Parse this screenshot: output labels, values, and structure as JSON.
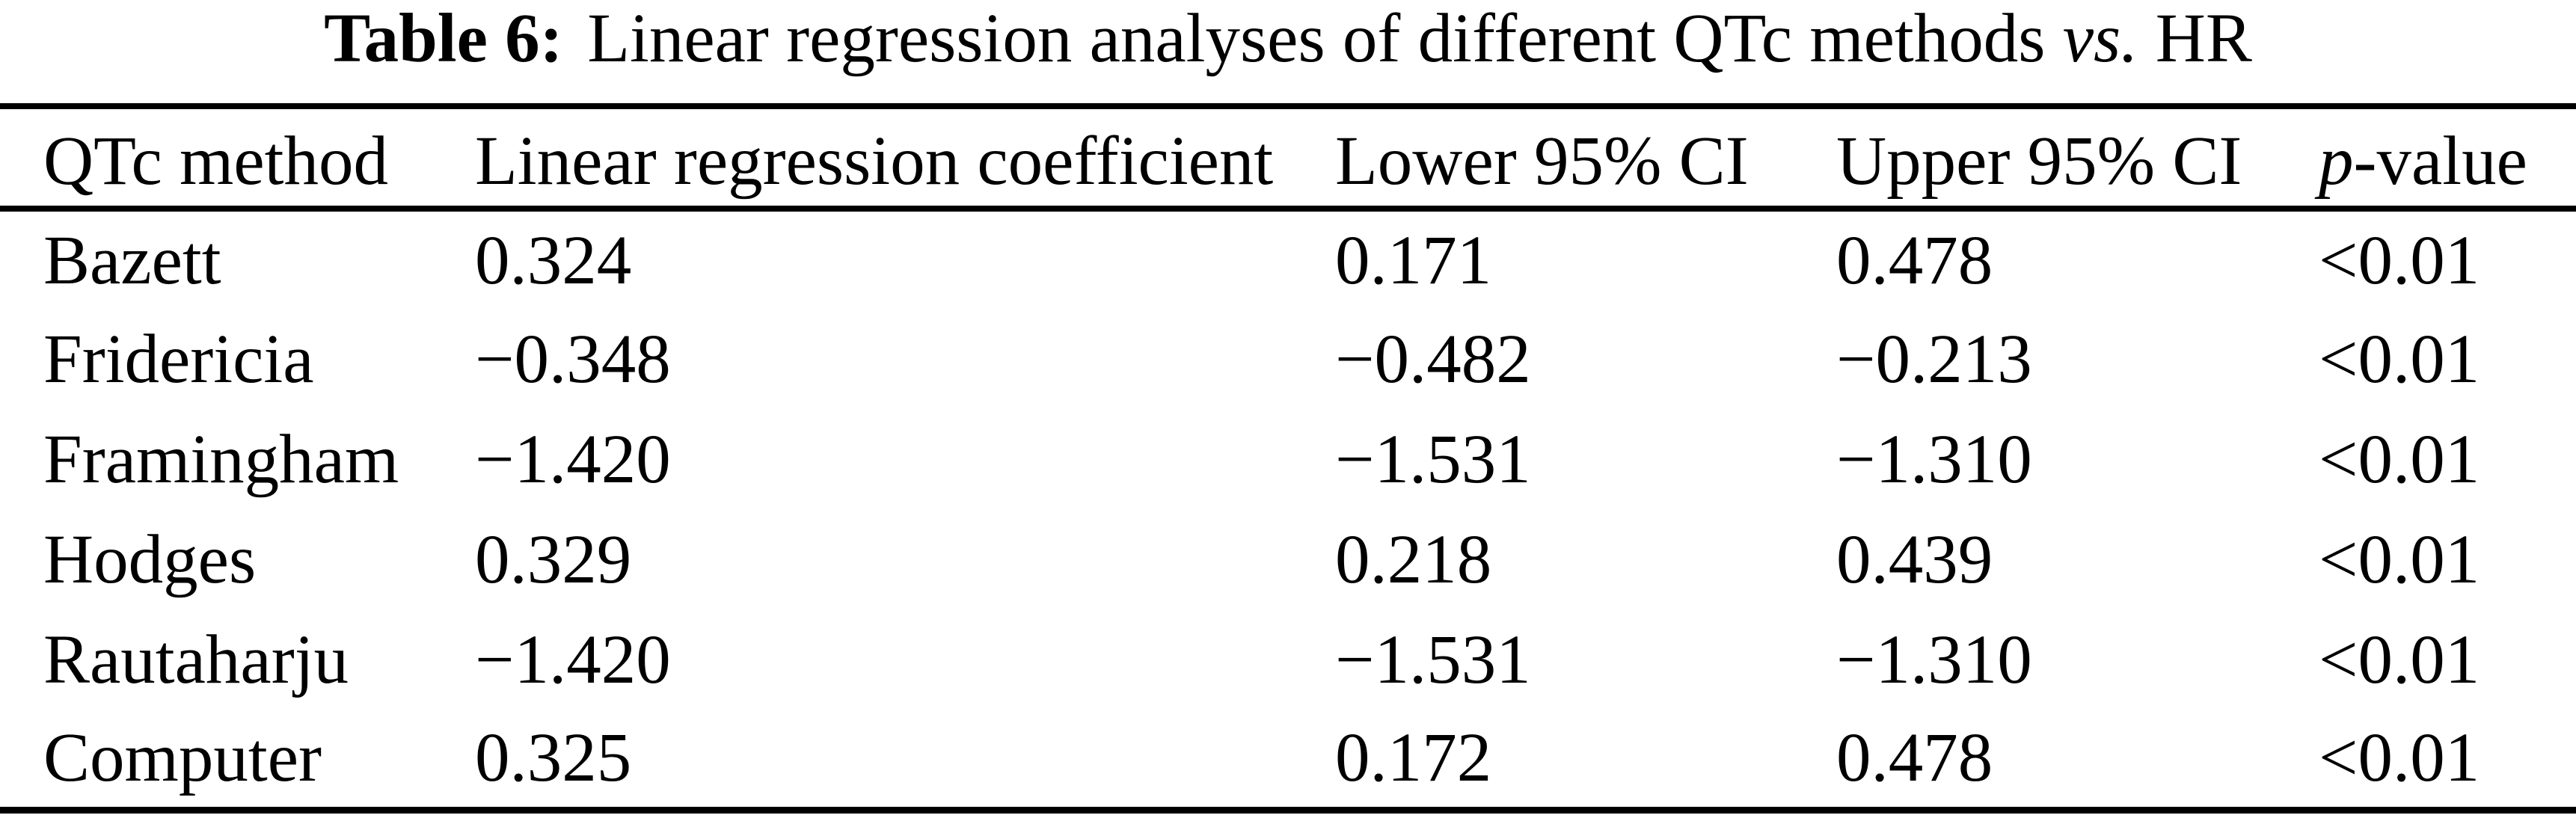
{
  "caption": {
    "label": "Table 6:",
    "text": "Linear regression analyses of different QTc methods",
    "vs": "vs.",
    "tail": "HR"
  },
  "table": {
    "header": {
      "method": "QTc method",
      "coefficient": "Linear regression coefficient",
      "lower": "Lower 95% CI",
      "upper": "Upper 95% CI",
      "p_italic": "p",
      "p_suffix": "-value"
    },
    "rows": [
      {
        "method": "Bazett",
        "coefficient": "0.324",
        "lower": "0.171",
        "upper": "0.478",
        "p": "<0.01"
      },
      {
        "method": "Fridericia",
        "coefficient": "−0.348",
        "lower": "−0.482",
        "upper": "−0.213",
        "p": "<0.01"
      },
      {
        "method": "Framingham",
        "coefficient": "−1.420",
        "lower": "−1.531",
        "upper": "−1.310",
        "p": "<0.01"
      },
      {
        "method": "Hodges",
        "coefficient": "0.329",
        "lower": "0.218",
        "upper": "0.439",
        "p": "<0.01"
      },
      {
        "method": "Rautaharju",
        "coefficient": "−1.420",
        "lower": "−1.531",
        "upper": "−1.310",
        "p": "<0.01"
      },
      {
        "method": "Computer",
        "coefficient": "0.325",
        "lower": "0.172",
        "upper": "0.478",
        "p": "<0.01"
      }
    ]
  },
  "chart_data": {
    "type": "table",
    "title": "Table 6: Linear regression analyses of different QTc methods vs. HR",
    "columns": [
      "QTc method",
      "Linear regression coefficient",
      "Lower 95% CI",
      "Upper 95% CI",
      "p-value"
    ],
    "rows": [
      [
        "Bazett",
        0.324,
        0.171,
        0.478,
        "<0.01"
      ],
      [
        "Fridericia",
        -0.348,
        -0.482,
        -0.213,
        "<0.01"
      ],
      [
        "Framingham",
        -1.42,
        -1.531,
        -1.31,
        "<0.01"
      ],
      [
        "Hodges",
        0.329,
        0.218,
        0.439,
        "<0.01"
      ],
      [
        "Rautaharju",
        -1.42,
        -1.531,
        -1.31,
        "<0.01"
      ],
      [
        "Computer",
        0.325,
        0.172,
        0.478,
        "<0.01"
      ]
    ]
  }
}
